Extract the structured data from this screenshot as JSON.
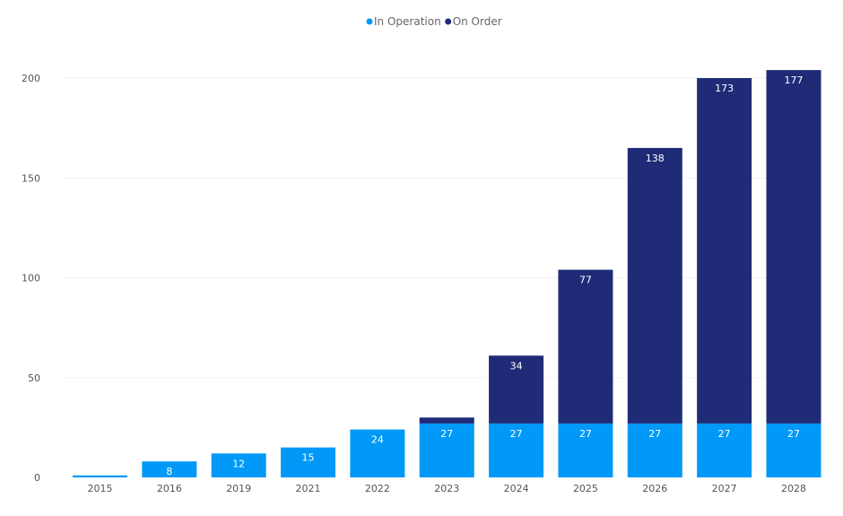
{
  "chart_data": {
    "type": "bar",
    "stacked": true,
    "title": "",
    "xlabel": "",
    "ylabel": "",
    "categories": [
      "2015",
      "2016",
      "2019",
      "2021",
      "2022",
      "2023",
      "2024",
      "2025",
      "2026",
      "2027",
      "2028"
    ],
    "series": [
      {
        "name": "In Operation",
        "color": "#0099f7",
        "values": [
          1,
          8,
          12,
          15,
          24,
          27,
          27,
          27,
          27,
          27,
          27
        ],
        "labels": [
          "",
          "8",
          "12",
          "15",
          "24",
          "27",
          "27",
          "27",
          "27",
          "27",
          "27"
        ]
      },
      {
        "name": "On Order",
        "color": "#202b78",
        "values": [
          0,
          0,
          0,
          0,
          0,
          3,
          34,
          77,
          138,
          173,
          177
        ],
        "labels": [
          "",
          "",
          "",
          "",
          "",
          "",
          "34",
          "77",
          "138",
          "173",
          "177"
        ]
      }
    ],
    "ylim": [
      0,
      205
    ],
    "yticks": [
      0,
      50,
      100,
      150,
      200
    ],
    "grid": true,
    "legend": "top-center"
  }
}
